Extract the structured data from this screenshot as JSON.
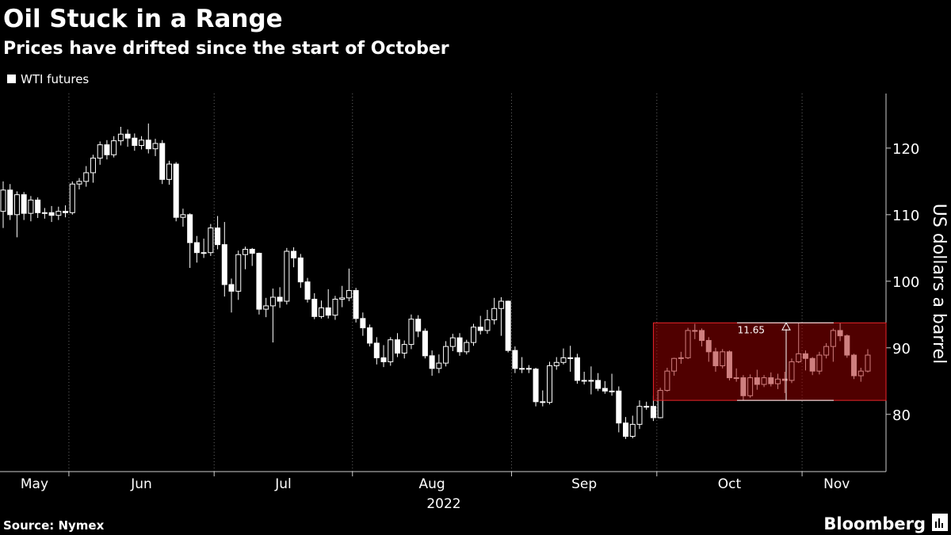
{
  "chart_data": {
    "type": "candlestick",
    "title": "Oil Stuck in a Range",
    "subtitle": "Prices have drifted since the start of October",
    "source": "Source: Nymex",
    "brand": "Bloomberg",
    "year": "2022",
    "ylabel": "US dollars a barrel",
    "ylim": [
      71.4,
      128.2
    ],
    "yticks": [
      80,
      90,
      100,
      110,
      120
    ],
    "grid": true,
    "categories": [
      "May",
      "May",
      "May",
      "May",
      "May",
      "May",
      "May",
      "May",
      "May",
      "May",
      "Jun",
      "Jun",
      "Jun",
      "Jun",
      "Jun",
      "Jun",
      "Jun",
      "Jun",
      "Jun",
      "Jun",
      "Jun",
      "Jun",
      "Jun",
      "Jun",
      "Jun",
      "Jun",
      "Jun",
      "Jun",
      "Jun",
      "Jun",
      "Jun",
      "Jul",
      "Jul",
      "Jul",
      "Jul",
      "Jul",
      "Jul",
      "Jul",
      "Jul",
      "Jul",
      "Jul",
      "Jul",
      "Jul",
      "Jul",
      "Jul",
      "Jul",
      "Jul",
      "Jul",
      "Jul",
      "Jul",
      "Jul",
      "Aug",
      "Aug",
      "Aug",
      "Aug",
      "Aug",
      "Aug",
      "Aug",
      "Aug",
      "Aug",
      "Aug",
      "Aug",
      "Aug",
      "Aug",
      "Aug",
      "Aug",
      "Aug",
      "Aug",
      "Aug",
      "Aug",
      "Aug",
      "Aug",
      "Aug",
      "Aug",
      "Sep",
      "Sep",
      "Sep",
      "Sep",
      "Sep",
      "Sep",
      "Sep",
      "Sep",
      "Sep",
      "Sep",
      "Sep",
      "Sep",
      "Sep",
      "Sep",
      "Sep",
      "Sep",
      "Sep",
      "Sep",
      "Sep",
      "Sep",
      "Sep",
      "Oct",
      "Oct",
      "Oct",
      "Oct",
      "Oct",
      "Oct",
      "Oct",
      "Oct",
      "Oct",
      "Oct",
      "Oct",
      "Oct",
      "Oct",
      "Oct",
      "Oct",
      "Oct",
      "Oct",
      "Oct",
      "Oct",
      "Oct",
      "Oct",
      "Nov",
      "Nov",
      "Nov",
      "Nov",
      "Nov",
      "Nov",
      "Nov",
      "Nov",
      "Nov",
      "Nov"
    ],
    "series": [
      {
        "name": "WTI futures",
        "color": "#ffffff",
        "open": [
          110.5,
          113.7,
          110.0,
          113.0,
          110.2,
          112.2,
          110.3,
          110.3,
          109.9,
          110.5,
          110.3,
          114.6,
          115.0,
          116.3,
          118.5,
          120.5,
          119.0,
          121.1,
          122.1,
          121.5,
          120.4,
          121.2,
          119.9,
          120.7,
          115.3,
          117.6,
          109.6,
          110.0,
          105.8,
          104.3,
          104.3,
          108.0,
          105.5,
          99.5,
          98.5,
          104.0,
          104.8,
          104.2,
          95.8,
          96.3,
          97.6,
          97.0,
          104.5,
          103.5,
          99.9,
          97.3,
          94.7,
          96.0,
          94.9,
          97.3,
          97.5,
          98.6,
          94.4,
          93.0,
          90.7,
          88.5,
          87.9,
          91.2,
          89.2,
          90.5,
          94.3,
          92.5,
          88.8,
          86.9,
          87.7,
          90.2,
          91.5,
          89.4,
          90.8,
          93.1,
          92.6,
          94.2,
          95.9,
          97.0,
          89.6,
          86.9,
          86.9,
          86.8,
          81.9,
          81.8,
          87.3,
          87.8,
          88.5,
          88.5,
          85.1,
          85.1,
          85.1,
          83.9,
          83.5,
          83.5,
          78.7,
          76.7,
          78.5,
          81.2,
          81.2,
          79.5,
          83.6,
          86.5,
          88.4,
          88.5,
          92.6,
          92.6,
          91.1,
          89.4,
          87.3,
          89.4,
          85.5,
          85.5,
          82.8,
          85.5,
          84.5,
          85.5,
          84.6,
          85.3,
          85.1,
          87.9,
          89.1,
          88.4,
          86.5,
          88.9,
          90.2,
          92.6,
          91.8,
          88.9,
          85.8,
          86.5
        ],
        "high": [
          115.0,
          114.6,
          113.5,
          113.4,
          112.8,
          112.6,
          111.0,
          111.3,
          111.2,
          111.4,
          115.0,
          115.5,
          117.3,
          119.0,
          121.0,
          121.2,
          121.8,
          123.2,
          122.8,
          122.2,
          121.8,
          123.7,
          121.4,
          121.2,
          118.1,
          117.9,
          110.9,
          110.2,
          106.8,
          106.4,
          108.6,
          109.8,
          108.9,
          100.4,
          104.6,
          105.2,
          105.0,
          104.3,
          97.5,
          98.9,
          99.1,
          105.0,
          105.1,
          104.1,
          100.5,
          98.2,
          97.1,
          98.8,
          97.8,
          99.3,
          101.9,
          99.0,
          95.3,
          93.5,
          91.6,
          90.4,
          91.6,
          92.2,
          91.1,
          95.0,
          94.9,
          92.9,
          89.6,
          89.0,
          91.0,
          92.1,
          92.2,
          91.2,
          93.6,
          94.8,
          95.7,
          97.5,
          97.6,
          97.1,
          90.2,
          88.6,
          87.4,
          87.0,
          83.6,
          87.9,
          88.6,
          89.9,
          90.3,
          89.1,
          86.4,
          87.2,
          86.2,
          85.0,
          86.1,
          84.2,
          79.6,
          79.8,
          82.1,
          81.9,
          82.8,
          84.0,
          87.0,
          88.5,
          89.4,
          93.0,
          93.6,
          92.9,
          91.6,
          90.0,
          89.8,
          89.6,
          86.9,
          85.9,
          86.0,
          86.7,
          85.9,
          86.3,
          86.1,
          86.4,
          88.4,
          93.7,
          89.6,
          88.6,
          89.4,
          90.7,
          92.9,
          93.7,
          92.0,
          89.1,
          87.0,
          89.8
        ],
        "low": [
          108.0,
          109.2,
          106.6,
          109.2,
          109.0,
          109.5,
          109.4,
          108.9,
          109.2,
          109.6,
          110.0,
          113.8,
          114.2,
          114.8,
          117.5,
          118.3,
          118.6,
          120.4,
          120.2,
          119.6,
          119.8,
          119.2,
          118.8,
          114.6,
          114.5,
          109.0,
          108.2,
          102.0,
          102.8,
          103.5,
          103.8,
          104.8,
          97.7,
          95.3,
          97.2,
          101.8,
          102.3,
          95.0,
          94.6,
          90.8,
          96.0,
          96.5,
          102.1,
          99.0,
          96.8,
          94.3,
          94.4,
          94.4,
          94.2,
          96.1,
          97.0,
          93.8,
          91.8,
          90.2,
          87.5,
          87.1,
          87.3,
          88.6,
          88.4,
          89.8,
          91.6,
          88.4,
          85.8,
          86.2,
          87.2,
          89.5,
          88.8,
          89.0,
          90.3,
          92.0,
          92.1,
          93.5,
          91.8,
          89.3,
          86.2,
          86.2,
          86.2,
          81.2,
          81.2,
          81.5,
          86.7,
          87.5,
          86.4,
          84.6,
          84.5,
          83.0,
          83.5,
          83.1,
          82.8,
          77.3,
          76.3,
          76.4,
          77.8,
          80.7,
          79.0,
          79.4,
          83.4,
          85.8,
          87.6,
          88.3,
          91.3,
          90.2,
          87.9,
          86.4,
          86.9,
          85.1,
          84.9,
          82.1,
          82.5,
          83.7,
          84.1,
          84.2,
          83.8,
          83.2,
          84.7,
          87.7,
          86.6,
          85.9,
          86.0,
          88.4,
          87.9,
          91.0,
          88.5,
          85.3,
          84.9,
          86.3
        ],
        "close": [
          113.7,
          110.0,
          113.0,
          110.2,
          112.2,
          110.3,
          110.3,
          109.9,
          110.5,
          110.3,
          114.6,
          115.0,
          116.3,
          118.5,
          120.5,
          119.0,
          121.1,
          122.1,
          121.5,
          120.4,
          121.2,
          119.9,
          120.7,
          115.3,
          117.6,
          109.6,
          110.0,
          105.8,
          104.3,
          104.3,
          108.0,
          105.5,
          99.5,
          98.5,
          104.0,
          104.8,
          104.2,
          95.8,
          96.3,
          97.6,
          97.0,
          104.5,
          103.5,
          99.9,
          97.3,
          94.7,
          96.0,
          94.9,
          97.3,
          97.5,
          98.6,
          94.4,
          93.0,
          90.7,
          88.5,
          87.9,
          91.2,
          89.2,
          90.5,
          94.3,
          92.5,
          88.8,
          86.9,
          87.7,
          90.2,
          91.5,
          89.4,
          90.8,
          93.1,
          92.6,
          94.2,
          95.9,
          97.0,
          89.6,
          86.9,
          86.9,
          86.8,
          81.9,
          81.8,
          87.3,
          87.8,
          88.5,
          88.5,
          85.1,
          85.1,
          85.1,
          83.9,
          83.5,
          83.5,
          78.7,
          76.7,
          78.5,
          81.2,
          81.2,
          79.5,
          83.6,
          86.5,
          88.4,
          88.5,
          92.6,
          92.6,
          91.1,
          89.4,
          87.3,
          89.4,
          85.5,
          85.5,
          82.8,
          85.5,
          84.5,
          85.5,
          84.6,
          85.3,
          85.1,
          87.9,
          89.1,
          88.4,
          86.5,
          88.9,
          90.2,
          92.6,
          91.8,
          88.9,
          85.8,
          86.5,
          88.9
        ]
      }
    ],
    "range_annotation": {
      "label": "11.65",
      "high": 93.75,
      "low": 82.1,
      "color": "#e8252b"
    }
  }
}
